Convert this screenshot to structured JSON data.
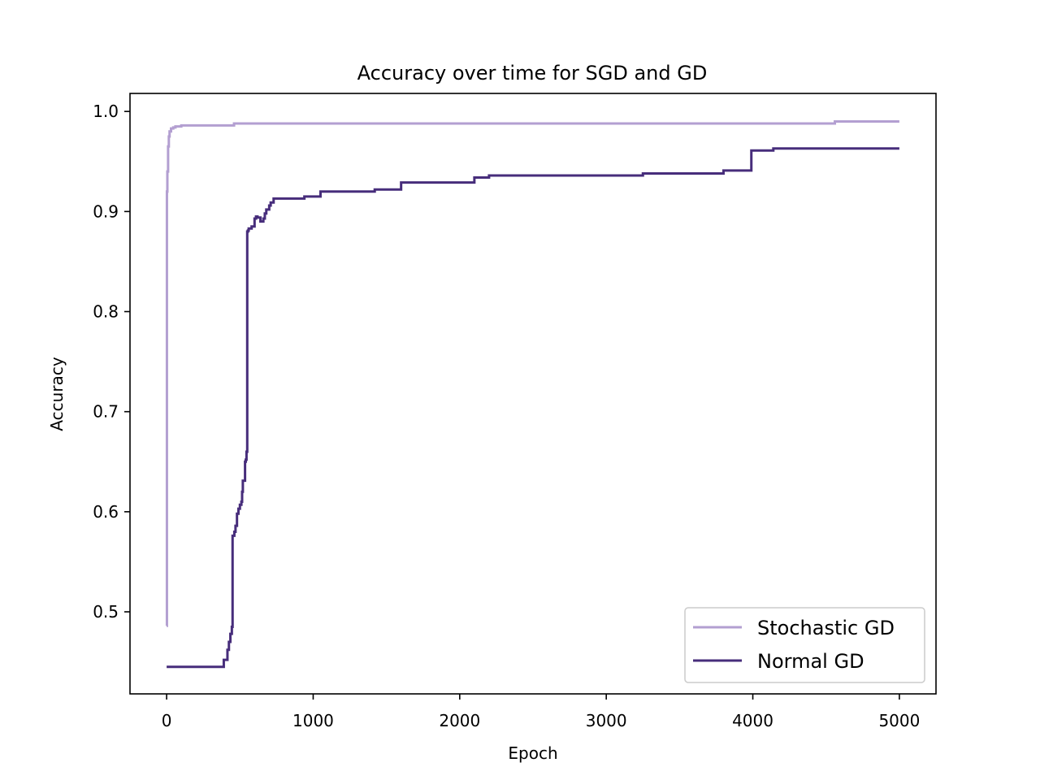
{
  "chart_data": {
    "type": "line",
    "title": "Accuracy over time for SGD and GD",
    "xlabel": "Epoch",
    "ylabel": "Accuracy",
    "xlim": [
      -250,
      5250
    ],
    "ylim": [
      0.418,
      1.018
    ],
    "xticks": [
      0,
      1000,
      2000,
      3000,
      4000,
      5000
    ],
    "xtick_labels": [
      "0",
      "1000",
      "2000",
      "3000",
      "4000",
      "5000"
    ],
    "yticks": [
      0.5,
      0.6,
      0.7,
      0.8,
      0.9,
      1.0
    ],
    "ytick_labels": [
      "0.5",
      "0.6",
      "0.7",
      "0.8",
      "0.9",
      "1.0"
    ],
    "grid": false,
    "legend_position": "lower-right",
    "series": [
      {
        "name": "Stochastic GD",
        "color": "#b39fd1",
        "step": true,
        "x": [
          0,
          2,
          5,
          10,
          15,
          20,
          30,
          45,
          60,
          100,
          460,
          4560,
          5000
        ],
        "y": [
          0.486,
          0.92,
          0.94,
          0.965,
          0.975,
          0.98,
          0.983,
          0.984,
          0.985,
          0.986,
          0.988,
          0.99,
          0.99
        ]
      },
      {
        "name": "Normal GD",
        "color": "#472d7b",
        "step": true,
        "x": [
          0,
          390,
          415,
          425,
          435,
          445,
          450,
          462,
          470,
          480,
          490,
          500,
          510,
          515,
          520,
          530,
          535,
          540,
          545,
          550,
          555,
          560,
          580,
          600,
          610,
          620,
          640,
          660,
          670,
          680,
          700,
          710,
          730,
          750,
          940,
          1050,
          1420,
          1600,
          2100,
          2200,
          3250,
          3800,
          3990,
          4140,
          5000
        ],
        "y": [
          0.445,
          0.452,
          0.462,
          0.47,
          0.478,
          0.485,
          0.576,
          0.58,
          0.586,
          0.598,
          0.603,
          0.607,
          0.61,
          0.62,
          0.631,
          0.631,
          0.65,
          0.652,
          0.66,
          0.88,
          0.881,
          0.883,
          0.885,
          0.893,
          0.895,
          0.894,
          0.89,
          0.893,
          0.898,
          0.902,
          0.906,
          0.909,
          0.913,
          0.913,
          0.915,
          0.92,
          0.922,
          0.929,
          0.934,
          0.936,
          0.938,
          0.941,
          0.961,
          0.963,
          0.963
        ]
      }
    ]
  }
}
